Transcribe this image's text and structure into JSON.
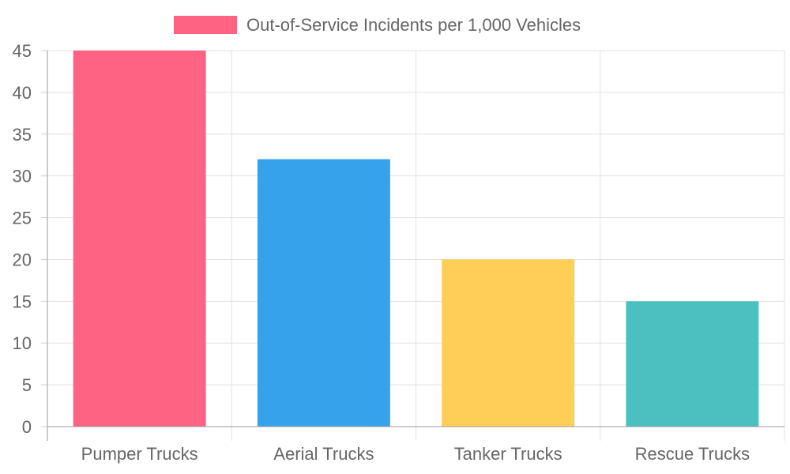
{
  "chart_data": {
    "type": "bar",
    "title": "",
    "xlabel": "",
    "ylabel": "",
    "categories": [
      "Pumper Trucks",
      "Aerial Trucks",
      "Tanker Trucks",
      "Rescue Trucks"
    ],
    "series": [
      {
        "name": "Out-of-Service Incidents per 1,000 Vehicles",
        "values": [
          45,
          32,
          20,
          15
        ],
        "colors": [
          "#FF6384",
          "#36A2EB",
          "#FFCE56",
          "#4BC0C0"
        ]
      }
    ],
    "ylim": [
      0,
      45
    ],
    "yticks": [
      "0",
      "5",
      "10",
      "15",
      "20",
      "25",
      "30",
      "35",
      "40",
      "45"
    ],
    "grid": true,
    "legend": "top",
    "legend_color": "#FF6384"
  }
}
